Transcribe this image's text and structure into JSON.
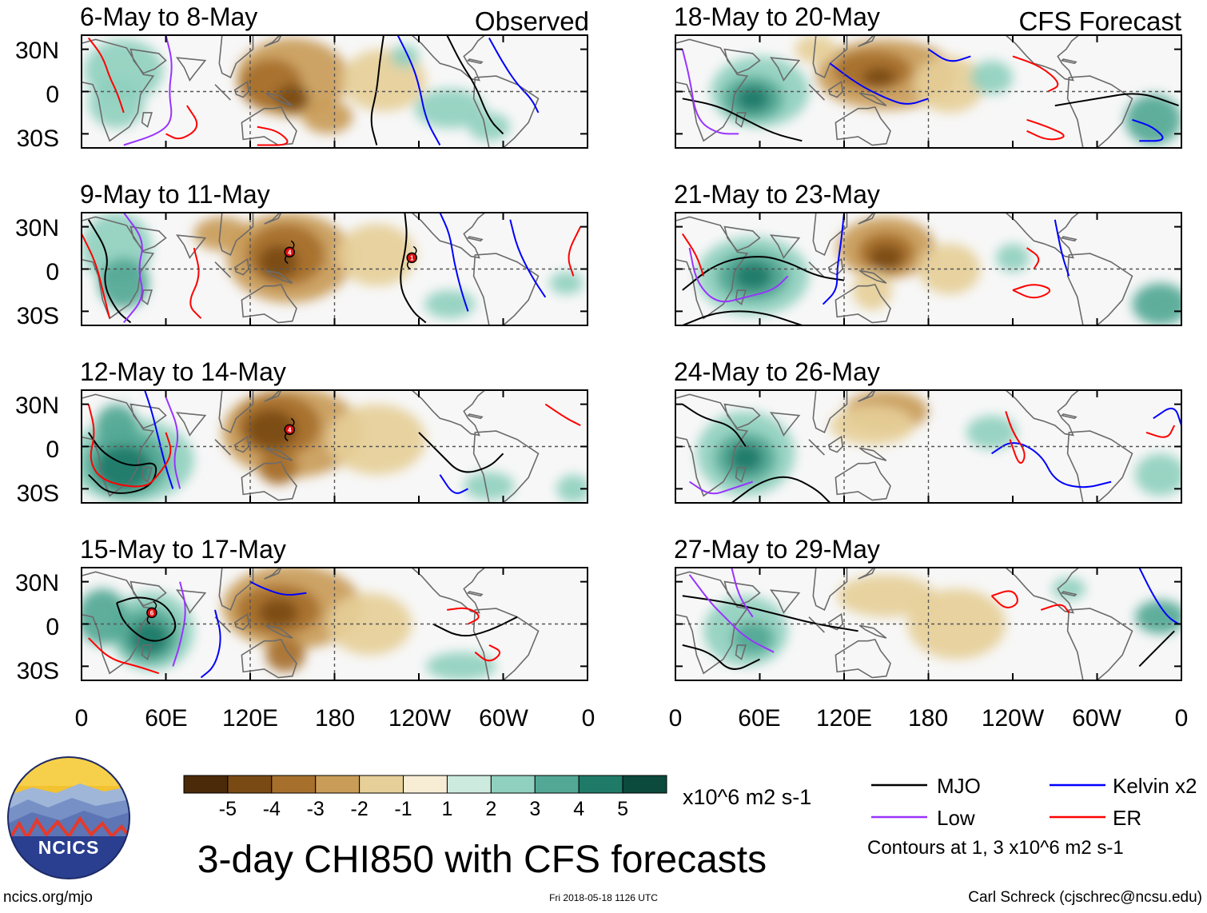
{
  "columns": [
    {
      "header": "Observed",
      "panels": [
        "6-May to 8-May",
        "9-May to 11-May",
        "12-May to 14-May",
        "15-May to 17-May"
      ]
    },
    {
      "header": "CFS Forecast",
      "panels": [
        "18-May to 20-May",
        "21-May to 23-May",
        "24-May to 26-May",
        "27-May to 29-May"
      ]
    }
  ],
  "lat_ticks": [
    "30N",
    "0",
    "30S"
  ],
  "lon_ticks": [
    "0",
    "60E",
    "120E",
    "180",
    "120W",
    "60W",
    "0"
  ],
  "colorbar": {
    "labels": [
      "-5",
      "-4",
      "-3",
      "-2",
      "-1",
      "1",
      "2",
      "3",
      "4",
      "5"
    ],
    "colors": [
      "#4a2a08",
      "#7a4a14",
      "#a66f2c",
      "#c99c58",
      "#e6cf98",
      "#f6edd4",
      "#f7f7f7",
      "#cdeadf",
      "#90d0bf",
      "#52a895",
      "#1f7a68",
      "#0b4a3d"
    ],
    "units": "x10^6 m2 s-1"
  },
  "legend": {
    "items": [
      {
        "label": "MJO",
        "color": "#000000"
      },
      {
        "label": "Kelvin x2",
        "color": "#0000ff"
      },
      {
        "label": "Low",
        "color": "#9933ff"
      },
      {
        "label": "ER",
        "color": "#ff0000"
      }
    ],
    "note": "Contours at 1, 3 x10^6 m2 s-1"
  },
  "title": "3-day CHI850 with CFS forecasts",
  "logo_text": "NCICS",
  "footer": {
    "left": "ncics.org/mjo",
    "center": "Fri 2018-05-18 1126 UTC",
    "right": "Carl Schreck (cjschrec@ncsu.edu)"
  },
  "storm_markers": [
    {
      "panel": [
        0,
        1
      ],
      "label": "4",
      "lon": 148,
      "lat": 12
    },
    {
      "panel": [
        0,
        1
      ],
      "label": "1",
      "lon": 235,
      "lat": 8
    },
    {
      "panel": [
        0,
        2
      ],
      "label": "4",
      "lon": 148,
      "lat": 12
    },
    {
      "panel": [
        0,
        3
      ],
      "label": "6",
      "lon": 50,
      "lat": 8
    }
  ],
  "colors": {
    "frame": "#000000",
    "grid": "#555555",
    "land": "#6b6b6b"
  }
}
